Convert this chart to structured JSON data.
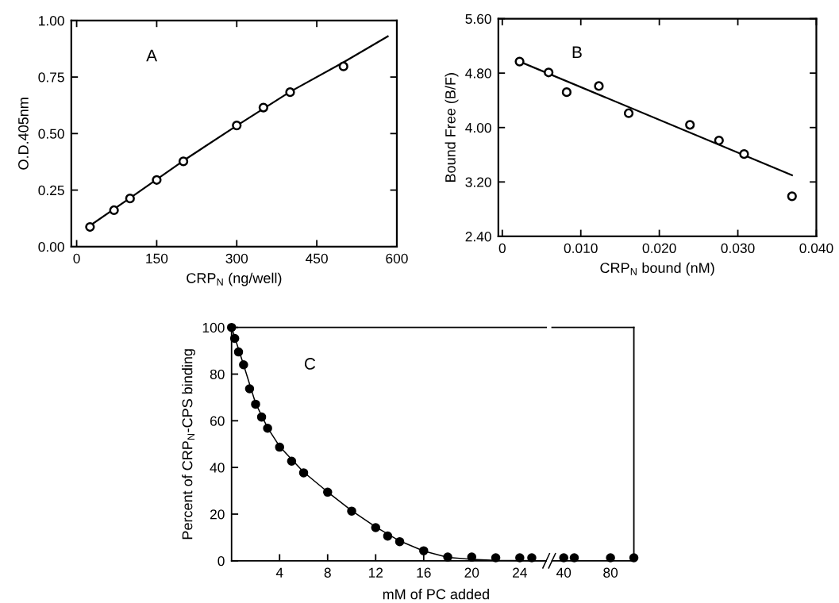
{
  "chart_data": [
    {
      "type": "scatter",
      "xlabel": "CRP$_{N}$ (ng/well)",
      "ylabel": "O.D.405nm",
      "annotations": [
        "A"
      ],
      "x": [
        25,
        70,
        100,
        150,
        200,
        300,
        350,
        400,
        500
      ],
      "series": [
        {
          "color": "#000000",
          "marker": "circle",
          "values": [
            0.087,
            0.161,
            0.213,
            0.295,
            0.377,
            0.536,
            0.615,
            0.683,
            0.797
          ]
        },
        {
          "type": "line",
          "color": "#000000",
          "x": [
            20,
            100,
            200,
            300,
            400,
            500,
            583
          ],
          "values": [
            0.085,
            0.215,
            0.38,
            0.535,
            0.685,
            0.815,
            0.93
          ]
        }
      ],
      "xlim": [
        -10,
        600
      ],
      "xticks": [
        0,
        150,
        300,
        450,
        600
      ],
      "ylim": [
        0,
        1
      ],
      "yticks": [
        {
          "value": 0,
          "label": "0.00"
        },
        {
          "value": 0.25,
          "label": "0.25"
        },
        {
          "value": 0.5,
          "label": "0.50"
        },
        {
          "value": 0.75,
          "label": "0.75"
        },
        {
          "value": 1,
          "label": "1.00"
        }
      ],
      "grid": false,
      "legend": false
    },
    {
      "type": "scatter",
      "xlabel": "CRP$_{N}$ bound (nM)",
      "ylabel": "Bound Free (B/F)",
      "annotations": [
        "B"
      ],
      "x": [
        0.0022,
        0.0059,
        0.0082,
        0.0123,
        0.0161,
        0.0239,
        0.0276,
        0.0308,
        0.0369
      ],
      "series": [
        {
          "color": "#000000",
          "marker": "circle",
          "values": [
            4.97,
            4.81,
            4.52,
            4.61,
            4.21,
            4.04,
            3.81,
            3.61,
            2.99
          ]
        },
        {
          "type": "line",
          "color": "#000000",
          "x": [
            0.0022,
            0.0369
          ],
          "values": [
            4.97,
            3.3
          ]
        }
      ],
      "xlim": [
        -0.0005,
        0.04
      ],
      "xticks": [
        0,
        {
          "value": 0.01,
          "label": "0.010"
        },
        {
          "value": 0.02,
          "label": "0.020"
        },
        {
          "value": 0.03,
          "label": "0.030"
        },
        {
          "value": 0.04,
          "label": "0.040"
        }
      ],
      "ylim": [
        2.4,
        5.6
      ],
      "yticks": [
        {
          "value": 2.4,
          "label": "2.40"
        },
        {
          "value": 3.2,
          "label": "3.20"
        },
        {
          "value": 4.0,
          "label": "4.00"
        },
        {
          "value": 4.8,
          "label": "4.80"
        },
        {
          "value": 5.6,
          "label": "5.60"
        }
      ],
      "grid": false,
      "legend": false
    },
    {
      "type": "scatter",
      "xlabel": "mM of PC added",
      "ylabel": "Percent of CRP$_{N}$-CPS binding",
      "annotations": [
        "C"
      ],
      "x": [
        0,
        0.26,
        0.58,
        1.0,
        1.5,
        2.0,
        2.5,
        3.0,
        4,
        5,
        6,
        8,
        10,
        12,
        13,
        14,
        16,
        18,
        20,
        22,
        24,
        25
      ],
      "series": [
        {
          "color": "#000000",
          "marker": "circle",
          "values": [
            100,
            95.3,
            89.5,
            84,
            73.7,
            67.1,
            61.6,
            56.8,
            48.7,
            42.7,
            37.7,
            29.4,
            21.3,
            14.2,
            10.6,
            8.2,
            4.3,
            1.6,
            1.6,
            1.3,
            1.3,
            1.3
          ]
        },
        {
          "type": "line",
          "color": "#000000",
          "x": [
            0,
            1,
            2,
            3,
            4,
            6,
            8,
            10,
            12,
            14,
            16,
            18,
            20,
            22,
            24,
            26
          ],
          "values": [
            100,
            84,
            67.5,
            57,
            49,
            38,
            29.5,
            21.5,
            14.5,
            8.5,
            4.2,
            1.5,
            0.6,
            0.2,
            0.1,
            0
          ]
        }
      ],
      "xlim": [
        0,
        26.2
      ],
      "xticks": [
        4,
        8,
        12,
        16,
        20,
        24
      ],
      "ylim": [
        0,
        100
      ],
      "yticks": [
        0,
        20,
        40,
        60,
        80,
        100
      ],
      "grid": false,
      "legend": false
    },
    {
      "type": "scatter",
      "tick_labels": "x",
      "x": [
        40,
        49,
        80,
        100
      ],
      "series": [
        {
          "color": "#000000",
          "marker": "circle",
          "values": [
            1.3,
            1.3,
            1.3,
            1.3
          ]
        }
      ],
      "xlim": [
        30,
        100
      ],
      "xticks": [
        40,
        80
      ],
      "ylim": [
        0,
        100
      ],
      "grid": false,
      "legend": false
    }
  ]
}
